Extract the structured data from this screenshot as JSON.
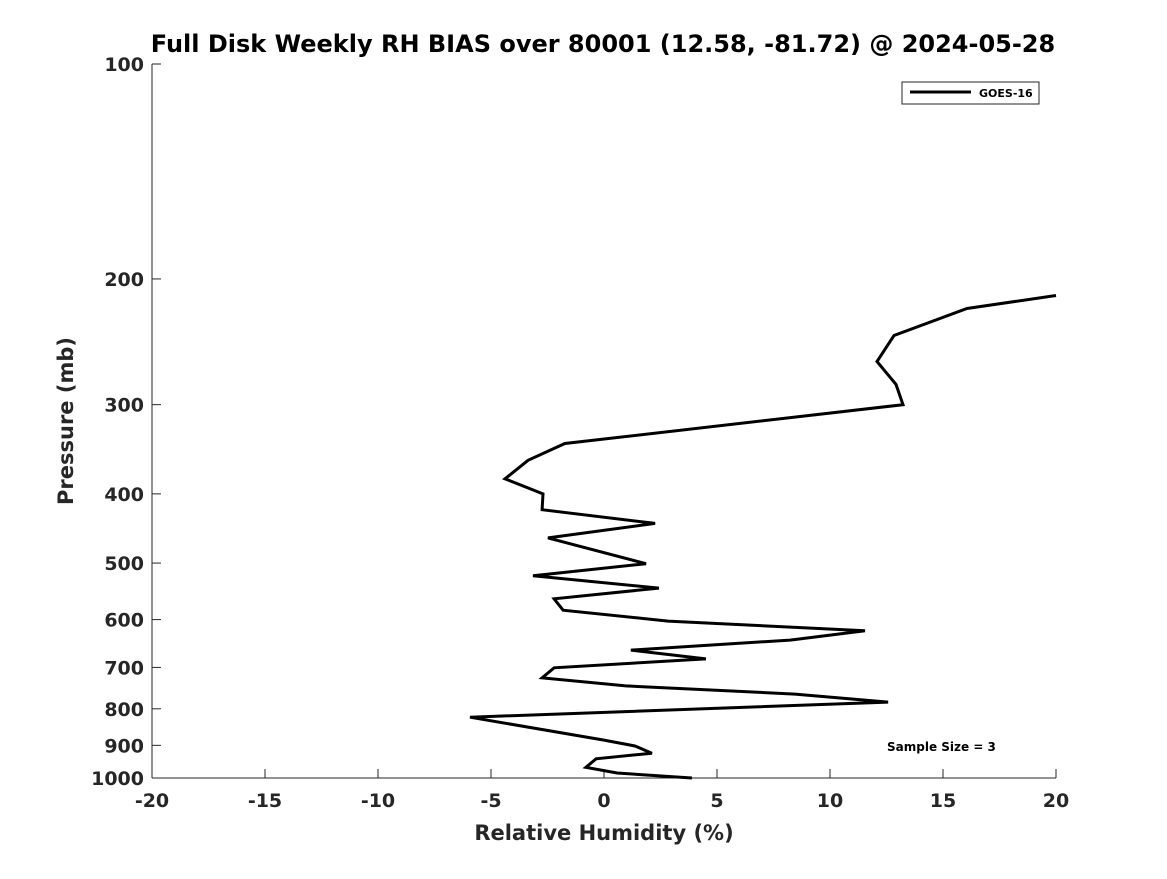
{
  "chart_data": {
    "type": "line",
    "title": "Full Disk Weekly RH BIAS over 80001 (12.58, -81.72) @ 2024-05-28",
    "xlabel": "Relative Humidity (%)",
    "ylabel": "Pressure (mb)",
    "xlim": [
      -20,
      20
    ],
    "ylim": [
      100,
      1000
    ],
    "yscale": "log",
    "y_reversed": true,
    "grid": false,
    "x_ticks": [
      -20,
      -15,
      -10,
      -5,
      0,
      5,
      10,
      15,
      20
    ],
    "y_ticks": [
      100,
      200,
      300,
      400,
      500,
      600,
      700,
      800,
      900,
      1000
    ],
    "legend_position": "top-right",
    "annotation": "Sample Size = 3",
    "color": "#000000",
    "series": [
      {
        "name": "GOES-16",
        "x": [
          20,
          16.06,
          12.83,
          12.08,
          12.92,
          13.23,
          -1.73,
          -3.36,
          -4.38,
          -2.7,
          -2.74,
          2.26,
          -2.48,
          1.86,
          -3.14,
          2.43,
          -2.21,
          -1.81,
          2.83,
          11.55,
          8.23,
          1.19,
          4.51,
          -2.21,
          -2.74,
          0.97,
          8.45,
          12.57,
          -5.93,
          0.0,
          1.37,
          2.12,
          -0.35,
          -0.8,
          0.58,
          3.89
        ],
        "y": [
          211,
          220,
          240,
          261,
          281,
          300,
          340,
          359,
          381,
          400,
          421,
          440,
          461,
          501,
          521,
          542,
          561,
          582,
          603,
          622,
          641,
          662,
          681,
          701,
          724,
          743,
          763,
          783,
          822,
          885,
          902,
          923,
          940,
          966,
          984,
          1000
        ]
      }
    ]
  }
}
